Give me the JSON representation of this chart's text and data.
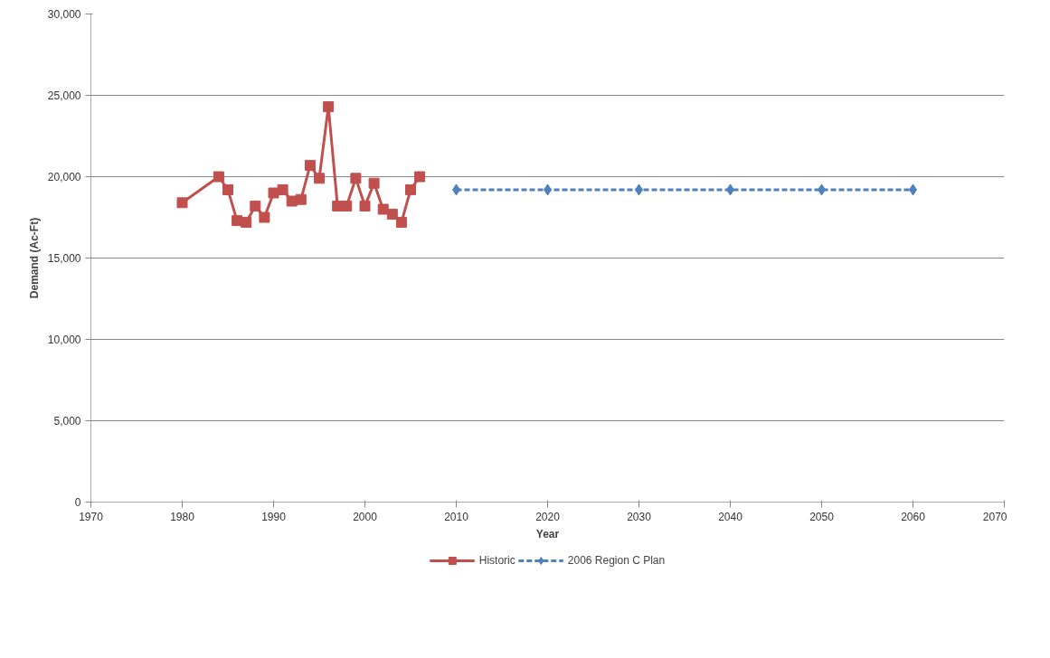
{
  "chart_data": {
    "type": "line",
    "xlabel": "Year",
    "ylabel": "Demand (Ac-Ft)",
    "xlim": [
      1970,
      2070
    ],
    "xticks": [
      1970,
      1980,
      1990,
      2000,
      2010,
      2020,
      2030,
      2040,
      2050,
      2060,
      2070
    ],
    "ylim": [
      0,
      30000
    ],
    "yticks": [
      {
        "value": 0,
        "label": "0"
      },
      {
        "value": 5000,
        "label": "5,000"
      },
      {
        "value": 10000,
        "label": "10,000"
      },
      {
        "value": 15000,
        "label": "15,000"
      },
      {
        "value": 20000,
        "label": "20,000"
      },
      {
        "value": 25000,
        "label": "25,000"
      },
      {
        "value": 30000,
        "label": "30,000"
      }
    ],
    "grid": "y",
    "legend": "bottom",
    "series": [
      {
        "name": "Historic",
        "color": "#c0504d",
        "marker": "square",
        "line_style": "solid",
        "x": [
          1980,
          1984,
          1985,
          1986,
          1987,
          1988,
          1989,
          1990,
          1991,
          1992,
          1993,
          1994,
          1995,
          1996,
          1997,
          1998,
          1999,
          2000,
          2001,
          2002,
          2003,
          2004,
          2005,
          2006
        ],
        "values": [
          18400,
          20000,
          19200,
          17300,
          17200,
          18200,
          17500,
          19000,
          19200,
          18500,
          18600,
          20700,
          19900,
          24300,
          18200,
          18200,
          19900,
          18200,
          19600,
          18000,
          17700,
          17200,
          19200,
          20000
        ]
      },
      {
        "name": "2006 Region C Plan",
        "color": "#4f81bd",
        "marker": "diamond",
        "line_style": "dashed",
        "x": [
          2010,
          2020,
          2030,
          2040,
          2050,
          2060
        ],
        "values": [
          19200,
          19200,
          19200,
          19200,
          19200,
          19200
        ]
      }
    ]
  }
}
